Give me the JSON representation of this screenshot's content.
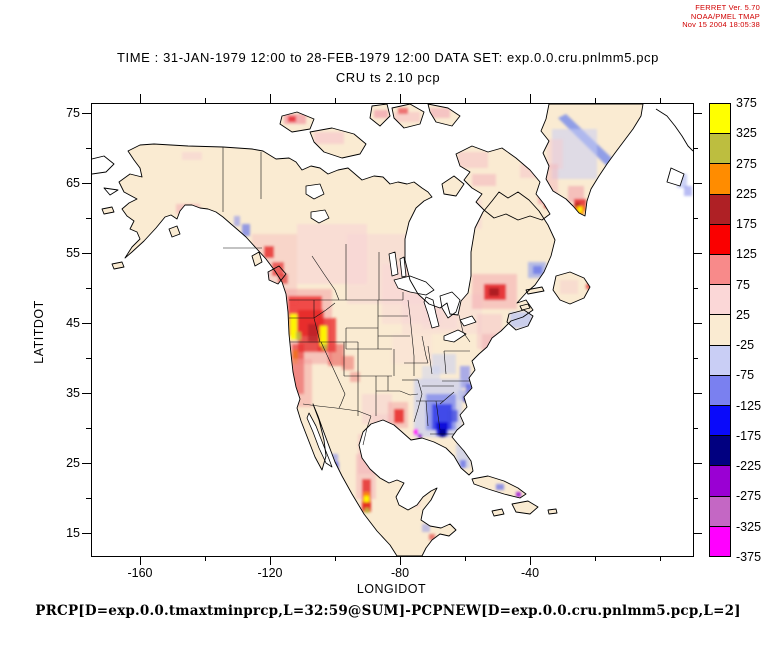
{
  "header": {
    "line1": "FERRET Ver. 5.70",
    "line2": "NOAA/PMEL TMAP",
    "line3": "Nov 15 2004 18:05:38",
    "color": "#D00000"
  },
  "title": {
    "line1": "TIME : 31-JAN-1979 12:00 to 28-FEB-1979 12:00 DATA SET: exp.0.0.cru.pnlmm5.pcp",
    "line2": "CRU ts 2.10 pcp"
  },
  "caption": {
    "text": "PRCP[D=exp.0.0.tmaxtminprcp,L=32:59@SUM]-PCPNEW[D=exp.0.0.cru.pnlmm5.pcp,L=2]"
  },
  "axes": {
    "x_label": "LONGIDOT",
    "y_label": "LATITDOT",
    "x_ticks": [
      -160,
      -120,
      -80,
      -40
    ],
    "x_minor_ticks": [
      -140,
      -100,
      -60,
      -20,
      0
    ],
    "y_ticks": [
      75,
      65,
      55,
      45,
      35,
      25,
      15
    ],
    "y_minor_ticks": [
      70,
      60,
      50,
      40,
      30,
      20
    ]
  },
  "colorbar": {
    "levels_top_to_bottom": [
      375,
      325,
      275,
      225,
      175,
      125,
      75,
      25,
      -25,
      -75,
      -125,
      -175,
      -225,
      -275,
      -325,
      -375
    ],
    "colors_top_to_bottom": [
      "#FFFF00",
      "#BDBE3F",
      "#FF8C00",
      "#AF2025",
      "#FA0000",
      "#F88A8A",
      "#FBD7D7",
      "#FAEBD2",
      "#C9CEF5",
      "#7A80F0",
      "#0A0AFA",
      "#010080",
      "#9A00D3",
      "#C467C4",
      "#FF00FF"
    ]
  },
  "chart_data": {
    "type": "heatmap",
    "title": "CRU ts 2.10 pcp",
    "subtitle": "TIME : 31-JAN-1979 12:00 to 28-FEB-1979 12:00 DATA SET: exp.0.0.cru.pnlmm5.pcp",
    "expression": "PRCP[D=exp.0.0.tmaxtminprcp,L=32:59@SUM]-PCPNEW[D=exp.0.0.cru.pnlmm5.pcp,L=2]",
    "xlabel": "LONGIDOT",
    "ylabel": "LATITDOT",
    "x_ticks": [
      -160,
      -120,
      -80,
      -40
    ],
    "y_ticks": [
      75,
      65,
      55,
      45,
      35,
      25,
      15
    ],
    "xlim": [
      -175,
      10
    ],
    "ylim": [
      11.5,
      76.5
    ],
    "legend_position": "right colorbar",
    "grid": false,
    "colorbar_levels": [
      -375,
      -325,
      -275,
      -225,
      -175,
      -125,
      -75,
      -25,
      25,
      75,
      125,
      175,
      225,
      275,
      325,
      375
    ],
    "colorbar_colors_low_to_high": [
      "#FF00FF",
      "#C467C4",
      "#9A00D3",
      "#010080",
      "#0A0AFA",
      "#7A80F0",
      "#C9CEF5",
      "#FAEBD2",
      "#FBD7D7",
      "#F88A8A",
      "#FA0000",
      "#AF2025",
      "#FF8C00",
      "#BDBE3F",
      "#FFFF00"
    ],
    "notable_features": [
      {
        "region": "Pacific Northwest / Cascades / Idaho Rockies",
        "value_range": "+75 to +375"
      },
      {
        "region": "California Sierra Nevada",
        "value_range": "+75 to +325"
      },
      {
        "region": "British Columbia and SE Alaska coast",
        "value_range": "-75 to -275 pockets"
      },
      {
        "region": "Central Canada prairies",
        "value_range": "+25 to +75"
      },
      {
        "region": "St. Lawrence valley / Quebec",
        "value_range": "+75 to +225"
      },
      {
        "region": "Saskatchewan spots",
        "value_range": "+125 to +175"
      },
      {
        "region": "Southeast US (AL/GA/FL panhandle)",
        "value_range": "-75 to -275"
      },
      {
        "region": "Mid-Atlantic coast",
        "value_range": "-25 to -175"
      },
      {
        "region": "Nova Scotia / Maritimes",
        "value_range": "-25 to -75"
      },
      {
        "region": "Louisiana/Texas border spot",
        "value_range": "+125 to +175"
      },
      {
        "region": "Eastern Mexico escarpment",
        "value_range": "+75 to +375"
      },
      {
        "region": "Southern Greenland tip",
        "value_range": "+125 to +375"
      },
      {
        "region": "Southeast Greenland slope band",
        "value_range": "-75 to -125"
      },
      {
        "region": "Continental interior elsewhere",
        "value_range": "-25 to +25"
      }
    ]
  }
}
